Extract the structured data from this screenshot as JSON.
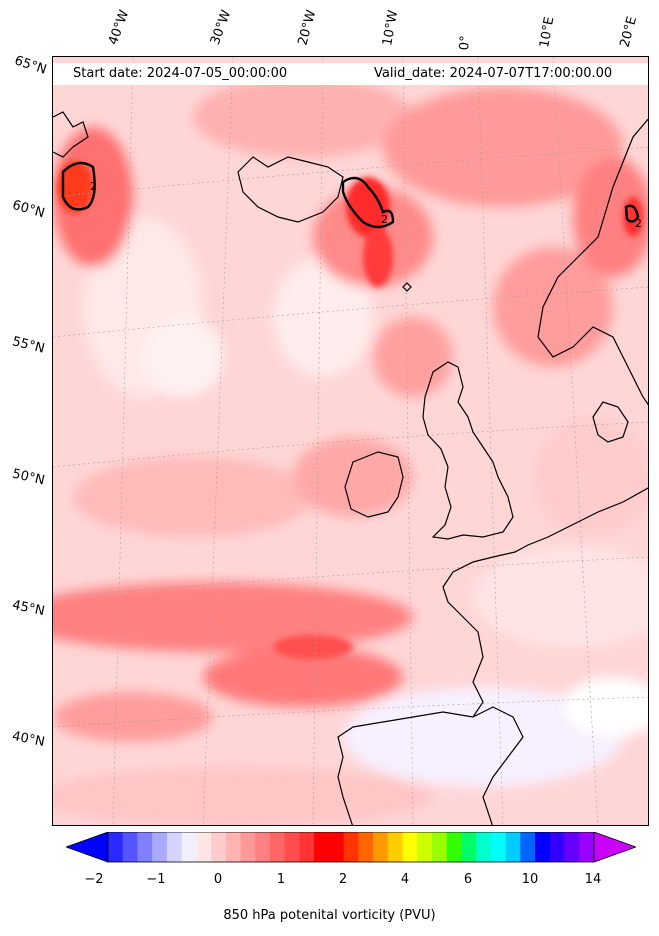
{
  "map": {
    "start_date": "Start date: 2024-07-05_00:00:00",
    "valid_date": "Valid_date: 2024-07-07T17:00:00.00",
    "longitude_labels": [
      "40°W",
      "30°W",
      "20°W",
      "10°W",
      "0°",
      "10°E",
      "20°E"
    ],
    "latitude_labels": [
      "65°N",
      "60°N",
      "55°N",
      "50°N",
      "45°N",
      "40°N"
    ],
    "contour_label": "2",
    "coastline_color": "#000000",
    "background_field_color": "#ffd6d6"
  },
  "colorbar": {
    "label": "850 hPa potenital vorticity (PVU)",
    "ticks": [
      "−2",
      "−1",
      "0",
      "1",
      "2",
      "4",
      "6",
      "10",
      "14"
    ],
    "colors": [
      "#0000ff",
      "#2a2aff",
      "#5555ff",
      "#7f7fff",
      "#a9a9ff",
      "#d4d4ff",
      "#f0f0ff",
      "#ffe6e6",
      "#ffcccc",
      "#ffb3b3",
      "#ff9999",
      "#ff8080",
      "#ff6666",
      "#ff4d4d",
      "#ff3333",
      "#ff0000",
      "#ff0000",
      "#ff3300",
      "#ff6600",
      "#ff9900",
      "#ffcc00",
      "#ffff00",
      "#ccff00",
      "#99ff00",
      "#33ff00",
      "#00ff66",
      "#00ffcc",
      "#00ffff",
      "#00ccff",
      "#0066ff",
      "#0000ff",
      "#3300ff",
      "#6600ff",
      "#9900ff",
      "#cc00ff"
    ]
  }
}
